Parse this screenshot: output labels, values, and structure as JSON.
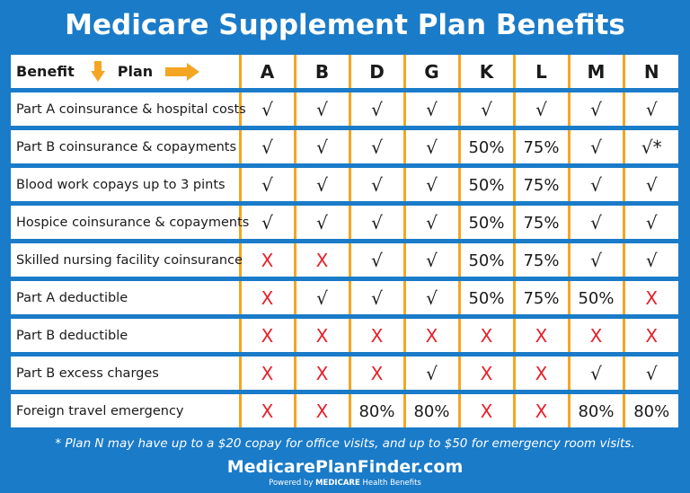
{
  "title": "Medicare Supplement Plan Benefits",
  "header": {
    "benefit_label": "Benefit",
    "plan_label": "Plan",
    "plans": [
      "A",
      "B",
      "D",
      "G",
      "K",
      "L",
      "M",
      "N"
    ]
  },
  "rows": [
    {
      "benefit": "Part A coinsurance & hospital costs",
      "cells": [
        "√",
        "√",
        "√",
        "√",
        "√",
        "√",
        "√",
        "√"
      ]
    },
    {
      "benefit": "Part B coinsurance & copayments",
      "cells": [
        "√",
        "√",
        "√",
        "√",
        "50%",
        "75%",
        "√",
        "√*"
      ]
    },
    {
      "benefit": "Blood work copays up to 3 pints",
      "cells": [
        "√",
        "√",
        "√",
        "√",
        "50%",
        "75%",
        "√",
        "√"
      ]
    },
    {
      "benefit": "Hospice coinsurance & copayments",
      "cells": [
        "√",
        "√",
        "√",
        "√",
        "50%",
        "75%",
        "√",
        "√"
      ]
    },
    {
      "benefit": "Skilled nursing facility coinsurance",
      "cells": [
        "X",
        "X",
        "√",
        "√",
        "50%",
        "75%",
        "√",
        "√"
      ]
    },
    {
      "benefit": "Part A deductible",
      "cells": [
        "X",
        "√",
        "√",
        "√",
        "50%",
        "75%",
        "50%",
        "X"
      ]
    },
    {
      "benefit": "Part B deductible",
      "cells": [
        "X",
        "X",
        "X",
        "X",
        "X",
        "X",
        "X",
        "X"
      ]
    },
    {
      "benefit": "Part B excess charges",
      "cells": [
        "X",
        "X",
        "X",
        "√",
        "X",
        "X",
        "√",
        "√"
      ]
    },
    {
      "benefit": "Foreign travel emergency",
      "cells": [
        "X",
        "X",
        "80%",
        "80%",
        "X",
        "X",
        "80%",
        "80%"
      ]
    }
  ],
  "footnote": "* Plan N may have up to a $20 copay for office visits, and up to $50 for emergency room visits.",
  "brand": {
    "name": "MedicarePlanFinder.com",
    "powered_prefix": "Powered by",
    "powered_brand": "MEDICARE",
    "powered_suffix": "Health Benefits"
  },
  "colors": {
    "background": "#1a7bc8",
    "accent": "#f4a623",
    "cross": "#e8202a",
    "check": "#1a1a1a"
  }
}
